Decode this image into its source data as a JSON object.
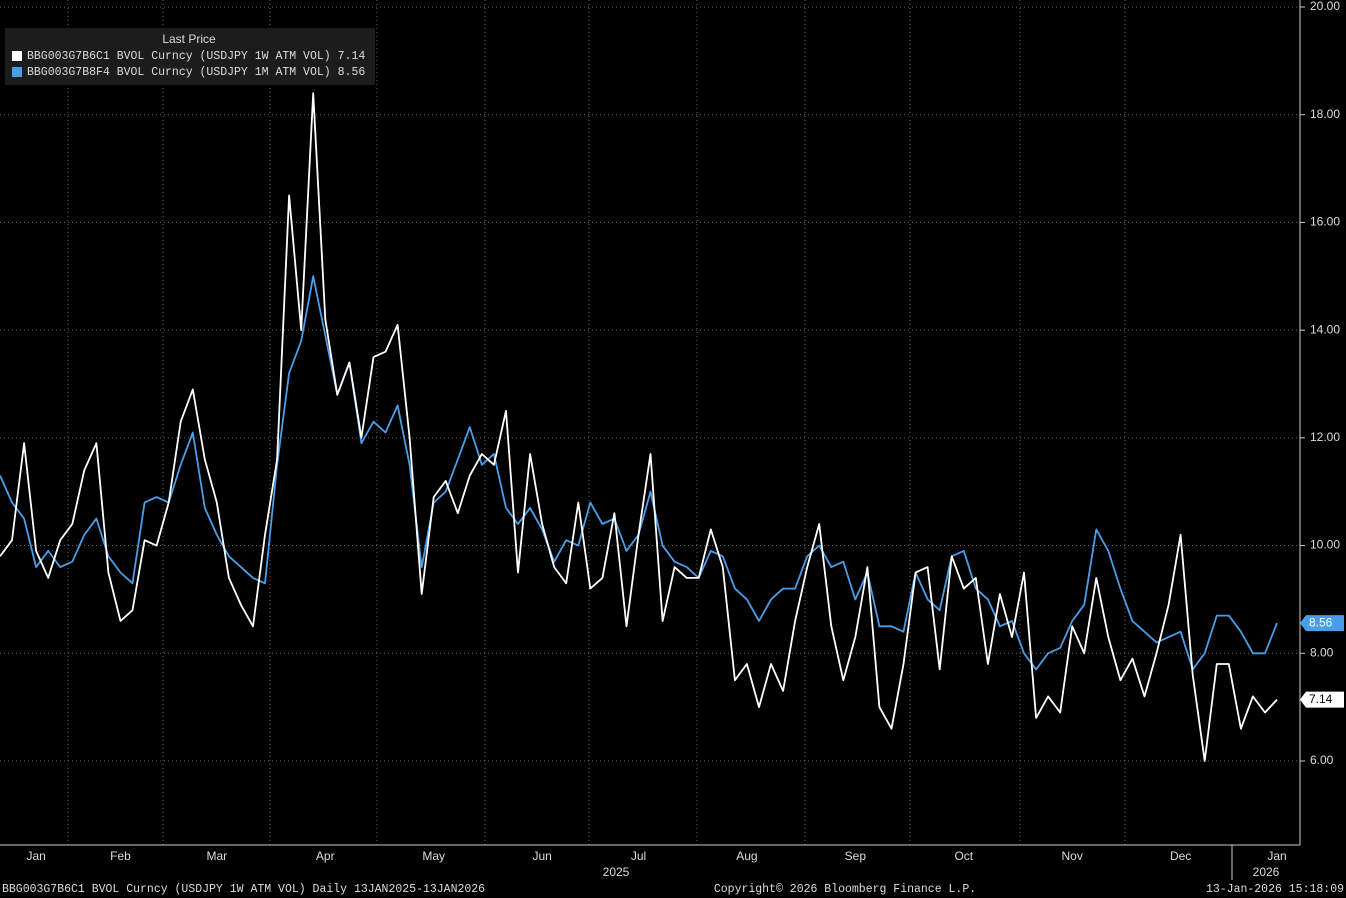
{
  "chart_data": {
    "type": "line",
    "legend_title": "Last Price",
    "categories": [
      null,
      null,
      null,
      "Jan",
      null,
      null,
      null,
      null,
      null,
      null,
      "Feb",
      null,
      null,
      null,
      null,
      null,
      null,
      null,
      "Mar",
      null,
      null,
      null,
      null,
      null,
      null,
      null,
      null,
      "Apr",
      null,
      null,
      null,
      null,
      null,
      null,
      null,
      null,
      "May",
      null,
      null,
      null,
      null,
      null,
      null,
      null,
      null,
      "Jun",
      null,
      null,
      null,
      null,
      null,
      null,
      null,
      "Jul",
      null,
      null,
      null,
      null,
      null,
      null,
      null,
      null,
      "Aug",
      null,
      null,
      null,
      null,
      null,
      null,
      null,
      null,
      "Sep",
      null,
      null,
      null,
      null,
      null,
      null,
      null,
      null,
      "Oct",
      null,
      null,
      null,
      null,
      null,
      null,
      null,
      null,
      "Nov",
      null,
      null,
      null,
      null,
      null,
      null,
      null,
      null,
      "Dec",
      null,
      null,
      null,
      null,
      null,
      null,
      null,
      "Jan"
    ],
    "year_labels": [
      "2025",
      "2026"
    ],
    "series": [
      {
        "name": "BBG003G7B6C1 BVOL Curncy (USDJPY 1W ATM VOL)",
        "color": "#ffffff",
        "values": [
          9.8,
          10.1,
          11.9,
          9.9,
          9.4,
          10.1,
          10.4,
          11.4,
          11.9,
          9.5,
          8.6,
          8.8,
          10.1,
          10.0,
          10.8,
          12.3,
          12.9,
          11.6,
          10.8,
          9.4,
          8.9,
          8.5,
          10.2,
          11.6,
          16.5,
          14.0,
          18.4,
          14.2,
          12.8,
          13.4,
          12.0,
          13.5,
          13.6,
          14.1,
          12.0,
          9.1,
          10.9,
          11.2,
          10.6,
          11.3,
          11.7,
          11.5,
          12.5,
          9.5,
          11.7,
          10.4,
          9.6,
          9.3,
          10.8,
          9.2,
          9.4,
          10.6,
          8.5,
          10.2,
          11.7,
          8.6,
          9.6,
          9.4,
          9.4,
          10.3,
          9.6,
          7.5,
          7.8,
          7.0,
          7.8,
          7.3,
          8.6,
          9.6,
          10.4,
          8.5,
          7.5,
          8.3,
          9.6,
          7.0,
          6.6,
          7.8,
          9.5,
          9.6,
          7.7,
          9.8,
          9.2,
          9.4,
          7.8,
          9.1,
          8.3,
          9.5,
          6.8,
          7.2,
          6.9,
          8.5,
          8.0,
          9.4,
          8.3,
          7.5,
          7.9,
          7.2,
          8.0,
          8.9,
          10.2,
          7.6,
          6.0,
          7.8,
          7.8,
          6.6,
          7.2,
          6.9,
          7.14
        ]
      },
      {
        "name": "BBG003G7B8F4 BVOL Curncy (USDJPY 1M ATM VOL)",
        "color": "#4a9ee8",
        "values": [
          11.3,
          10.8,
          10.5,
          9.6,
          9.9,
          9.6,
          9.7,
          10.2,
          10.5,
          9.8,
          9.5,
          9.3,
          10.8,
          10.9,
          10.8,
          11.5,
          12.1,
          10.7,
          10.2,
          9.8,
          9.6,
          9.4,
          9.3,
          11.5,
          13.2,
          13.8,
          15.0,
          13.9,
          12.8,
          13.4,
          11.9,
          12.3,
          12.1,
          12.6,
          11.5,
          9.6,
          10.8,
          11.0,
          11.6,
          12.2,
          11.5,
          11.7,
          10.7,
          10.4,
          10.7,
          10.3,
          9.7,
          10.1,
          10.0,
          10.8,
          10.4,
          10.5,
          9.9,
          10.2,
          11.0,
          10.0,
          9.7,
          9.6,
          9.4,
          9.9,
          9.8,
          9.2,
          9.0,
          8.6,
          9.0,
          9.2,
          9.2,
          9.8,
          10.0,
          9.6,
          9.7,
          9.0,
          9.5,
          8.5,
          8.5,
          8.4,
          9.5,
          9.0,
          8.8,
          9.8,
          9.9,
          9.2,
          9.0,
          8.5,
          8.6,
          8.0,
          7.7,
          8.0,
          8.1,
          8.6,
          8.9,
          10.3,
          9.9,
          9.2,
          8.6,
          8.4,
          8.2,
          8.3,
          8.4,
          7.7,
          8.0,
          8.7,
          8.7,
          8.4,
          8.0,
          8.0,
          8.56
        ]
      }
    ],
    "ylim": [
      4.44,
      20.13
    ],
    "yticks": [
      {
        "value": 6,
        "label": "6.00"
      },
      {
        "value": 8,
        "label": "8.00"
      },
      {
        "value": 10,
        "label": "10.00"
      },
      {
        "value": 12,
        "label": "12.00"
      },
      {
        "value": 14,
        "label": "14.00"
      },
      {
        "value": 16,
        "label": "16.00"
      },
      {
        "value": 18,
        "label": "18.00"
      },
      {
        "value": 20,
        "label": "20.00"
      }
    ],
    "grid": true,
    "footer": {
      "left": "BBG003G7B6C1 BVOL Curncy (USDJPY 1W ATM VOL) Daily 13JAN2025-13JAN2026",
      "center": "Copyright© 2026 Bloomberg Finance L.P.",
      "right": "13-Jan-2026 15:18:09"
    }
  }
}
